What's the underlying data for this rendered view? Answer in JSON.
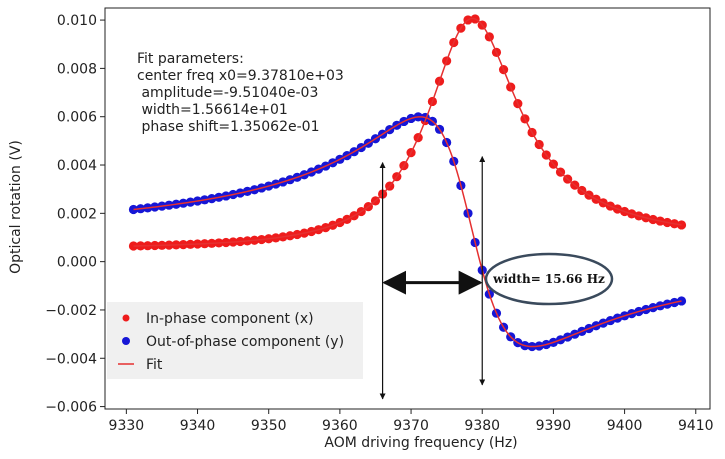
{
  "chart_data": {
    "type": "scatter",
    "xlabel": "AOM driving frequency (Hz)",
    "ylabel": "Optical rotation (V)",
    "xlim": [
      9327,
      9412
    ],
    "ylim": [
      -0.0061,
      0.0105
    ],
    "xticks": [
      9330,
      9340,
      9350,
      9360,
      9370,
      9380,
      9390,
      9400,
      9410
    ],
    "xtick_labels": [
      "9330",
      "9340",
      "9350",
      "9360",
      "9370",
      "9380",
      "9390",
      "9400",
      "9410"
    ],
    "yticks": [
      -0.006,
      -0.004,
      -0.002,
      0.0,
      0.002,
      0.004,
      0.006,
      0.008,
      0.01
    ],
    "ytick_labels": [
      "−0.006",
      "−0.004",
      "−0.002",
      "0.000",
      "0.002",
      "0.004",
      "0.006",
      "0.008",
      "0.010"
    ],
    "fit_parameters": {
      "title": "Fit parameters:",
      "lines": [
        "center freq x0=9.37810e+03",
        " amplitude=-9.51040e-03",
        " width=1.56614e+01",
        " phase shift=1.35062e-01"
      ],
      "center": 9378.1,
      "amplitude": -0.0095104,
      "width": 15.6614,
      "phase_shift": 0.135062
    },
    "x_range": [
      9331,
      9408
    ],
    "num_points": 78,
    "offset": 0.0006,
    "series": [
      {
        "name": "In-phase component (x)",
        "color": "#ee1c1c",
        "kind": "x"
      },
      {
        "name": "Out-of-phase component (y)",
        "color": "#1616d6",
        "kind": "y"
      },
      {
        "name": "Fit",
        "color": "#e53030",
        "kind": "fit"
      }
    ],
    "width_annotation": {
      "label": "width= 15.66 Hz",
      "left_x": 9366.0,
      "right_x": 9380.0,
      "arrow_y": -0.00087,
      "top_y": 0.0041,
      "bottom_y": -0.0051
    },
    "legend": {
      "position": "lower-left"
    },
    "colors": {
      "x_points": "#ee1c1c",
      "y_points": "#1616d6",
      "fit_line": "#e53030",
      "ellipse_stroke": "#3a4a5c"
    }
  }
}
